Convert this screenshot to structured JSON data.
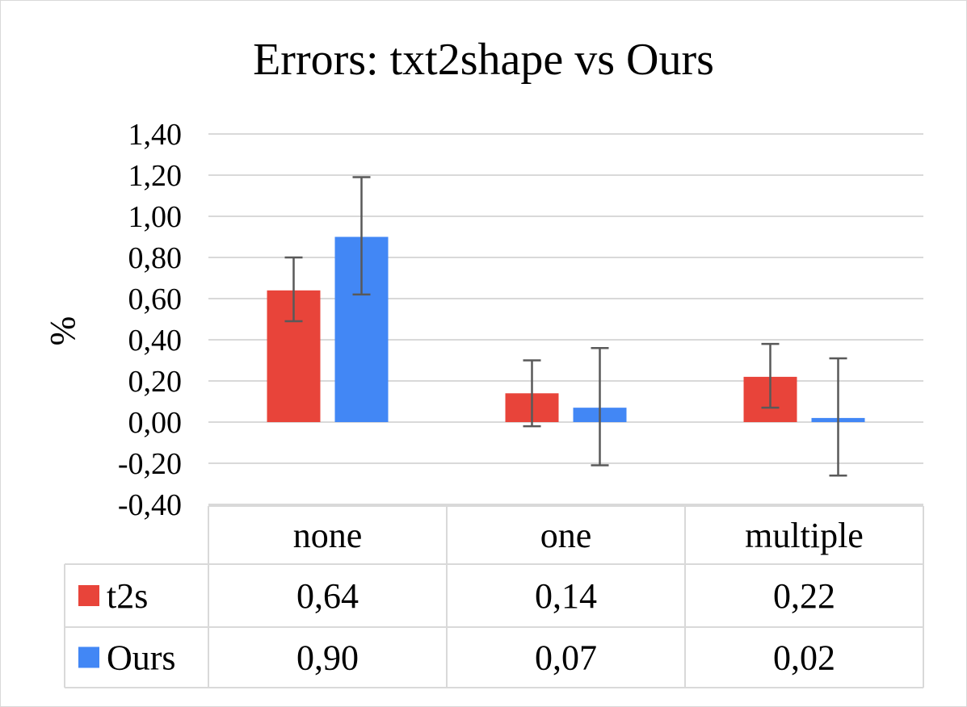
{
  "chart_data": {
    "type": "bar",
    "title": "Errors: txt2shape vs Ours",
    "ylabel": "%",
    "xlabel": "",
    "categories": [
      "none",
      "one",
      "multiple"
    ],
    "ylim": [
      -0.4,
      1.4
    ],
    "yticks": [
      1.4,
      1.2,
      1.0,
      0.8,
      0.6,
      0.4,
      0.2,
      0.0,
      -0.2,
      -0.4
    ],
    "ytick_labels": [
      "1,40",
      "1,20",
      "1,00",
      "0,80",
      "0,60",
      "0,40",
      "0,20",
      "0,00",
      "-0,20",
      "-0,40"
    ],
    "grid": true,
    "legend": "data-table",
    "series": [
      {
        "name": "t2s",
        "color": "#e8443a",
        "values": [
          0.64,
          0.14,
          0.22
        ],
        "value_labels": [
          "0,64",
          "0,14",
          "0,22"
        ],
        "error_low": [
          0.49,
          -0.02,
          0.07
        ],
        "error_high": [
          0.8,
          0.3,
          0.38
        ]
      },
      {
        "name": "Ours",
        "color": "#4287f5",
        "values": [
          0.9,
          0.07,
          0.02
        ],
        "value_labels": [
          "0,90",
          "0,07",
          "0,02"
        ],
        "error_low": [
          0.62,
          -0.21,
          -0.26
        ],
        "error_high": [
          1.19,
          0.36,
          0.31
        ]
      }
    ]
  }
}
